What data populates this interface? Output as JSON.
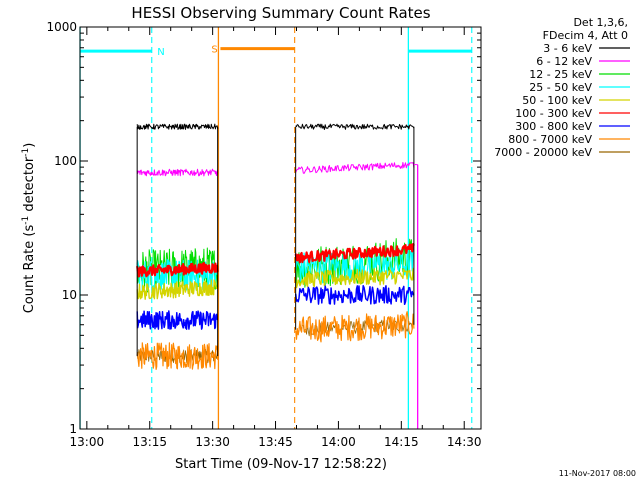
{
  "chart_data": {
    "type": "line",
    "title": "HESSI Observing Summary Count Rates",
    "xlabel": "Start Time (09-Nov-17 12:58:22)",
    "ylabel_main": "Count Rate (s",
    "ylabel_sup1": "-1",
    "ylabel_mid": " detector",
    "ylabel_sup2": "-1",
    "ylabel_end": ")",
    "xlim": [
      12.9728,
      14.5667
    ],
    "ylim": [
      1,
      1000
    ],
    "yscale": "log",
    "x_ticks": [
      {
        "v": 13.0,
        "label": "13:00"
      },
      {
        "v": 13.25,
        "label": "13:15"
      },
      {
        "v": 13.5,
        "label": "13:30"
      },
      {
        "v": 13.75,
        "label": "13:45"
      },
      {
        "v": 14.0,
        "label": "14:00"
      },
      {
        "v": 14.25,
        "label": "14:15"
      },
      {
        "v": 14.5,
        "label": "14:30"
      }
    ],
    "y_ticks": [
      {
        "v": 1,
        "label": "1"
      },
      {
        "v": 10,
        "label": "10"
      },
      {
        "v": 100,
        "label": "100"
      },
      {
        "v": 1000,
        "label": "1000"
      }
    ],
    "legend_header": [
      "Det 1,3,6,",
      "FDecim 4, Att 0"
    ],
    "segments": [
      [
        13.2,
        13.52
      ],
      [
        13.83,
        14.3
      ]
    ],
    "series": [
      {
        "name": "3 - 6 keV",
        "color": "#000000",
        "seg": [
          [
            180,
            180
          ],
          [
            180,
            180
          ]
        ],
        "noise": 0.02,
        "width": 1.0
      },
      {
        "name": "6 - 12 keV",
        "color": "#ff00ff",
        "seg": [
          [
            82,
            82
          ],
          [
            85,
            94
          ]
        ],
        "noise": 0.025,
        "width": 1.0
      },
      {
        "name": "12 - 25 keV",
        "color": "#00dd00",
        "seg": [
          [
            15,
            16
          ],
          [
            16,
            19
          ]
        ],
        "noise": 0.16,
        "width": 1.0
      },
      {
        "name": "25 - 50 keV",
        "color": "#00ffff",
        "seg": [
          [
            14,
            14
          ],
          [
            16,
            17
          ]
        ],
        "noise": 0.12,
        "width": 1.2
      },
      {
        "name": "50 - 100 keV",
        "color": "#d4d400",
        "seg": [
          [
            10.5,
            11.5
          ],
          [
            13,
            14
          ]
        ],
        "noise": 0.06,
        "width": 1.4
      },
      {
        "name": "100 - 300 keV",
        "color": "#ff0000",
        "seg": [
          [
            15,
            16
          ],
          [
            19,
            22
          ]
        ],
        "noise": 0.04,
        "width": 2.2
      },
      {
        "name": "300 - 800 keV",
        "color": "#0000ff",
        "seg": [
          [
            6.5,
            6.5
          ],
          [
            10,
            10
          ]
        ],
        "noise": 0.07,
        "width": 1.5
      },
      {
        "name": "800 - 7000 keV",
        "color": "#ff8800",
        "seg": [
          [
            3.5,
            3.5
          ],
          [
            5.5,
            6
          ]
        ],
        "noise": 0.1,
        "width": 1.2
      },
      {
        "name": "7000 - 20000 keV",
        "color": "#996600",
        "seg": [
          [
            3.5,
            3.5
          ],
          [
            5.5,
            6
          ]
        ],
        "noise": 0.05,
        "width": 0.8
      }
    ],
    "annotations": {
      "N_label": "N",
      "S_label": "S",
      "N_lines_solid": [
        12.973,
        14.278
      ],
      "N_lines_dashed": [
        13.258,
        14.53
      ],
      "N_bars": [
        [
          12.973,
          13.258
        ],
        [
          14.278,
          14.53
        ]
      ],
      "N_level": 660,
      "N_label_x": 13.28,
      "N_color": "#00ffff",
      "S_solid": 13.523,
      "S_dashed": 13.826,
      "S_bar": [
        13.523,
        13.826
      ],
      "S_level": 690,
      "S_label_x": 13.495,
      "S_color": "#ff8800",
      "magenta_drop_x": 14.315
    }
  },
  "footer_date": "11-Nov-2017 08:00"
}
